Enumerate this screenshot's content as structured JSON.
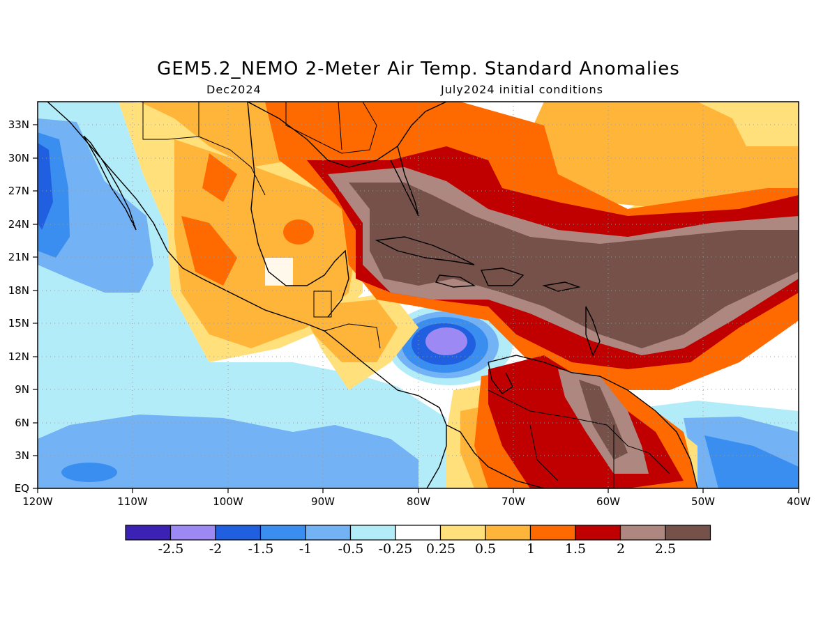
{
  "title": "GEM5.2_NEMO 2-Meter Air Temp. Standard Anomalies",
  "subtitle_left": "Dec2024",
  "subtitle_right": "July2024 initial conditions",
  "axes": {
    "lon_ticks": [
      "120W",
      "110W",
      "100W",
      "90W",
      "80W",
      "70W",
      "60W",
      "50W",
      "40W"
    ],
    "lat_ticks": [
      "EQ",
      "3N",
      "6N",
      "9N",
      "12N",
      "15N",
      "18N",
      "21N",
      "24N",
      "27N",
      "30N",
      "33N"
    ],
    "lon_range": [
      -120,
      -40
    ],
    "lat_range": [
      0,
      35
    ],
    "grid": "dotted"
  },
  "colorbar": {
    "labels": [
      "-2.5",
      "-2",
      "-1.5",
      "-1",
      "-0.5",
      "-0.25",
      "0.25",
      "0.5",
      "1",
      "1.5",
      "2",
      "2.5"
    ],
    "colors": [
      "#3b22b5",
      "#9c89f4",
      "#1f5fe0",
      "#3a8ef0",
      "#73b3f5",
      "#b2ecf8",
      "#ffffff",
      "#ffe07a",
      "#ffb53a",
      "#ff6a00",
      "#c00000",
      "#ad8780",
      "#75514a"
    ]
  }
}
